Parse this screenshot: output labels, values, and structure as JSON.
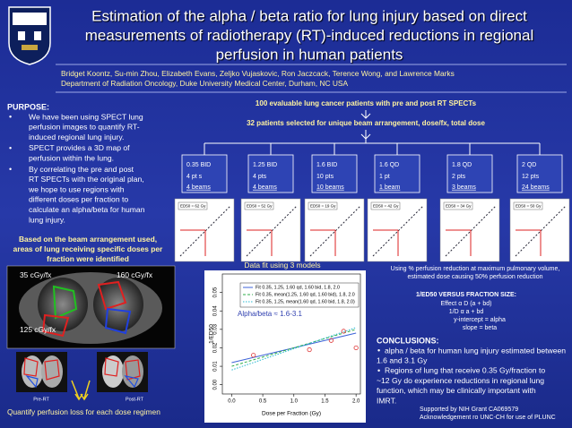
{
  "header": {
    "title_lines": [
      "Estimation of the alpha / beta ratio for lung injury based on direct",
      "measurements of radiotherapy (RT)-induced reductions in regional",
      "perfusion in human patients"
    ],
    "authors": "Bridget Koontz, Su-min Zhou, Elizabeth Evans, Zeljko Vujaskovic, Ron Jaczcack, Terence Wong, and Lawrence Marks",
    "affiliation": "Department of Radiation Oncology, Duke University Medical Center, Durham, NC USA"
  },
  "purpose": {
    "heading": "PURPOSE:",
    "bullets": [
      [
        "We have been using SPECT lung",
        "perfusion images to quantify RT-",
        "induced regional lung injury."
      ],
      [
        "SPECT provides a 3D map of",
        "perfusion within the lung."
      ],
      [
        "By correlating the pre and post",
        "RT SPECTs with the original plan,",
        "we hope to use regions with",
        "different doses per fraction to",
        "calculate an alpha/beta for human",
        "lung injury."
      ]
    ]
  },
  "dose_map": {
    "caption_lines": [
      "Based on the beam arrangement used,",
      "areas of lung receiving specific doses per",
      "fraction were identified"
    ],
    "labels": [
      "35 cGy/fx",
      "160 cGy/fx",
      "125 cGy/fx"
    ],
    "pre": "Pre-RT",
    "post": "Post-RT",
    "footer": "Quantify perfusion loss for each dose regimen"
  },
  "selection": {
    "step1": "100 evaluable lung cancer patients with  pre and post RT SPECTs",
    "step2": "32 patients selected for unique beam arrangement, dose/fx, total dose",
    "groups": [
      {
        "dose": "0.35 BID",
        "patients": "4 pt s",
        "beams": "4 beams",
        "ed50": "ED50 = 62 Gy"
      },
      {
        "dose": "1.25 BID",
        "patients": "4 pts",
        "beams": "4 beams",
        "ed50": "ED50 = 52 Gy"
      },
      {
        "dose": "1.6  BID",
        "patients": "10 pts",
        "beams": "10 beams",
        "ed50": "ED50 = 19 Gy"
      },
      {
        "dose": "1.6  QD",
        "patients": "1 pt",
        "beams": "1 beam",
        "ed50": "ED50 = 42 Gy"
      },
      {
        "dose": "1.8  QD",
        "patients": "2 pts",
        "beams": "3 beams",
        "ed50": "ED50 = 34 Gy"
      },
      {
        "dose": "2 QD",
        "patients": "12 pts",
        "beams": "24 beams",
        "ed50": "ED50 = 50 Gy"
      }
    ]
  },
  "fit_plot": {
    "caption": "Data fit using 3 models",
    "ylabel": "1/ED50",
    "xlabel": "Dose per Fraction (Gy)",
    "annotation": "Alpha/beta ≈ 1.6-3.1",
    "xlim": [
      -0.15,
      2.07
    ],
    "ylim": [
      -0.005,
      0.06
    ],
    "xticks": [
      {
        "value": 0,
        "label": "0.0"
      },
      0.5,
      {
        "value": 1,
        "label": "1.0"
      },
      1.5,
      {
        "value": 2,
        "label": "2.0"
      }
    ],
    "yticks": [
      {
        "value": 0,
        "label": "0.00"
      },
      0.01,
      0.02,
      0.03,
      0.04,
      0.05
    ],
    "points": {
      "x": [
        0.35,
        1.25,
        1.6,
        1.6,
        1.8,
        2.0
      ],
      "y": [
        0.016,
        0.019,
        0.052,
        0.024,
        0.029,
        0.02
      ]
    },
    "fits": [
      {
        "name": "Fit 0.35, 1.25, 1.60 qd, 1.60 bid, 1.8, 2.0",
        "color": "#3d63d8",
        "x": [
          0,
          2
        ],
        "y": [
          0.012,
          0.028
        ]
      },
      {
        "name": "Fit 0.35, mean(1.25, 1.60 qd, 1.60 bid), 1.8, 2.0",
        "color": "#2fae4a",
        "x": [
          0,
          2
        ],
        "y": [
          0.01,
          0.03
        ]
      },
      {
        "name": "Fit 0.35, 1.25, mean(1.60 qd, 1.60 bid, 1.8, 2.0)",
        "color": "#27b8d0",
        "x": [
          0,
          2
        ],
        "y": [
          0.008,
          0.031
        ]
      }
    ]
  },
  "method": {
    "lines": [
      "Using % perfusion reduction at maximum pulmonary volume,",
      "estimated dose causing 50% perfusion reduction"
    ],
    "heading": "1/ED50 VERSUS FRACTION SIZE:",
    "formulas": [
      "Effect α D (a + bd)",
      "1/D α a + bd",
      "y-intercept = alpha",
      "slope = beta"
    ]
  },
  "conclusions": {
    "heading": "CONCLUSIONS:",
    "bullets": [
      [
        "alpha / beta for human lung injury estimated between",
        "1.6 and 3.1 Gy"
      ],
      [
        "Regions of lung that receive 0.35 Gy/fraction to",
        "~12 Gy do experience reductions in regional lung",
        "function, which may be clinically important with",
        "IMRT."
      ]
    ]
  },
  "footer": {
    "support": "Supported by NIH Grant CA069579",
    "acknowledgement": "Acknowledgement ro UNC-CH for use of PLUNC"
  }
}
